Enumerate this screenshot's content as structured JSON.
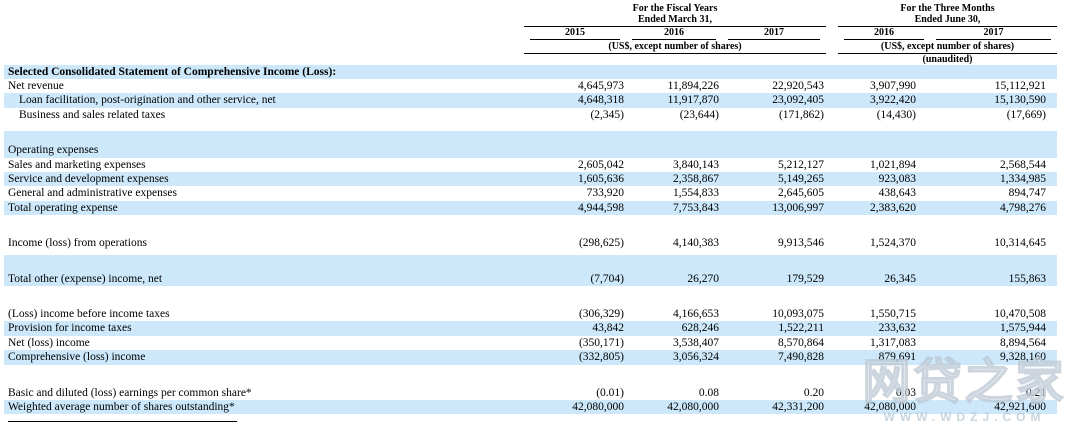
{
  "colors": {
    "row_highlight": "#cce8fa"
  },
  "header": {
    "groups": [
      {
        "title_line1": "For the Fiscal Years",
        "title_line2": "Ended March 31,",
        "years": [
          "2015",
          "2016",
          "2017"
        ],
        "unit_note": "(US$, except number of shares)",
        "audit_note": ""
      },
      {
        "title_line1": "For the Three Months",
        "title_line2": "Ended June 30,",
        "years": [
          "2016",
          "2017"
        ],
        "unit_note": "(US$, except number of shares)",
        "audit_note": "(unaudited)"
      }
    ]
  },
  "table": {
    "rows": [
      {
        "type": "section",
        "label": "Selected Consolidated Statement of Comprehensive Income (Loss):",
        "bold": true,
        "indent": false,
        "bg": "blue",
        "values": [
          "",
          "",
          "",
          "",
          ""
        ]
      },
      {
        "type": "data",
        "label": "Net revenue",
        "bold": false,
        "indent": false,
        "bg": "white",
        "values": [
          "4,645,973",
          "11,894,226",
          "22,920,543",
          "3,907,990",
          "15,112,921"
        ]
      },
      {
        "type": "data",
        "label": "Loan facilitation, post-origination and other service, net",
        "bold": false,
        "indent": true,
        "bg": "blue",
        "values": [
          "4,648,318",
          "11,917,870",
          "23,092,405",
          "3,922,420",
          "15,130,590"
        ]
      },
      {
        "type": "data",
        "label": "Business and sales related taxes",
        "bold": false,
        "indent": true,
        "bg": "white",
        "values": [
          "(2,345)",
          "(23,644)",
          "(171,862)",
          "(14,430)",
          "(17,669)"
        ]
      },
      {
        "type": "spacer",
        "bg": "split9"
      },
      {
        "type": "section",
        "label": "Operating expenses",
        "bold": false,
        "indent": false,
        "bg": "blue",
        "values": [
          "",
          "",
          "",
          "",
          ""
        ]
      },
      {
        "type": "data",
        "label": "Sales and marketing expenses",
        "bold": false,
        "indent": false,
        "bg": "white",
        "values": [
          "2,605,042",
          "3,840,143",
          "5,212,127",
          "1,021,894",
          "2,568,544"
        ]
      },
      {
        "type": "data",
        "label": "Service and development expenses",
        "bold": false,
        "indent": false,
        "bg": "blue",
        "values": [
          "1,605,636",
          "2,358,867",
          "5,149,265",
          "923,083",
          "1,334,985"
        ]
      },
      {
        "type": "data",
        "label": "General and administrative expenses",
        "bold": false,
        "indent": false,
        "bg": "white",
        "values": [
          "733,920",
          "1,554,833",
          "2,645,605",
          "438,643",
          "894,747"
        ]
      },
      {
        "type": "data",
        "label": "Total operating expense",
        "bold": false,
        "indent": false,
        "bg": "blue",
        "values": [
          "4,944,598",
          "7,753,843",
          "13,006,997",
          "2,383,620",
          "4,798,276"
        ]
      },
      {
        "type": "spacer",
        "bg": "white"
      },
      {
        "type": "data",
        "label": "Income (loss) from operations",
        "bold": false,
        "indent": false,
        "bg": "white",
        "values": [
          "(298,625)",
          "4,140,383",
          "9,913,546",
          "1,524,370",
          "10,314,645"
        ]
      },
      {
        "type": "spacer",
        "bg": "split4"
      },
      {
        "type": "data",
        "label": "Total other (expense) income, net",
        "bold": false,
        "indent": false,
        "bg": "blue",
        "values": [
          "(7,704)",
          "26,270",
          "179,529",
          "26,345",
          "155,863"
        ]
      },
      {
        "type": "spacer",
        "bg": "white"
      },
      {
        "type": "data",
        "label": "(Loss) income before income taxes",
        "bold": false,
        "indent": false,
        "bg": "white",
        "values": [
          "(306,329)",
          "4,166,653",
          "10,093,075",
          "1,550,715",
          "10,470,508"
        ]
      },
      {
        "type": "data",
        "label": "Provision for income taxes",
        "bold": false,
        "indent": false,
        "bg": "blue",
        "values": [
          "43,842",
          "628,246",
          "1,522,211",
          "233,632",
          "1,575,944"
        ]
      },
      {
        "type": "data",
        "label": "Net (loss) income",
        "bold": false,
        "indent": false,
        "bg": "white",
        "values": [
          "(350,171)",
          "3,538,407",
          "8,570,864",
          "1,317,083",
          "8,894,564"
        ]
      },
      {
        "type": "data",
        "label": "Comprehensive (loss) income",
        "bold": false,
        "indent": false,
        "bg": "blue",
        "values": [
          "(332,805)",
          "3,056,324",
          "7,490,828",
          "879,691",
          "9,328,160"
        ]
      },
      {
        "type": "spacer",
        "bg": "white"
      },
      {
        "type": "data",
        "label": "Basic and diluted (loss) earnings per common share*",
        "bold": false,
        "indent": false,
        "bg": "white",
        "values": [
          "(0.01)",
          "0.08",
          "0.20",
          "0.03",
          "0.21"
        ]
      },
      {
        "type": "data",
        "label": "Weighted average number of shares outstanding*",
        "bold": false,
        "indent": false,
        "bg": "blue",
        "values": [
          "42,080,000",
          "42,080,000",
          "42,331,200",
          "42,080,000",
          "42,921,600"
        ]
      }
    ]
  },
  "watermark": {
    "text": "网贷之家",
    "subtext": "WWW.WDZJ.COM"
  }
}
